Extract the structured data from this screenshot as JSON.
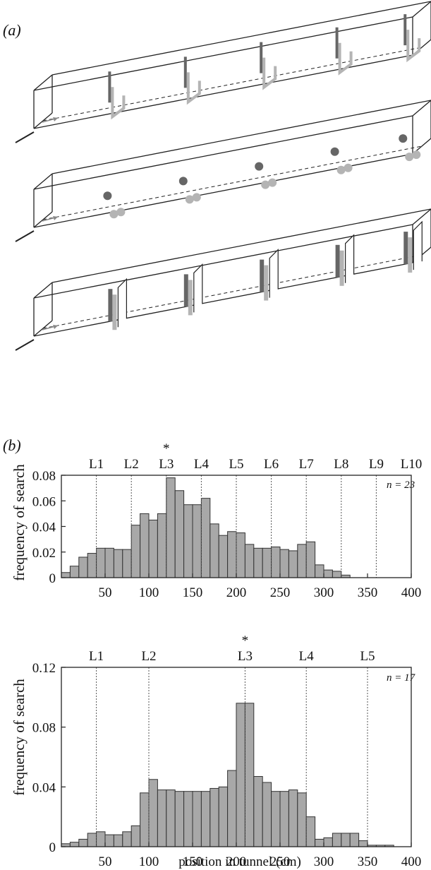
{
  "figure": {
    "panel_a_label": "(a)",
    "panel_b_label": "(b)"
  },
  "colors": {
    "bar_fill": "#a8a8a8",
    "bar_stroke": "#333333",
    "landmark_dark": "#666666",
    "landmark_light": "#b4b4b4",
    "line": "#222222",
    "arrow": "#888888"
  },
  "chart_data": [
    {
      "type": "bar",
      "title": "",
      "xlabel": "",
      "ylabel": "frequency of search",
      "n_label": "n = 23",
      "xlim": [
        0,
        400
      ],
      "ylim": [
        0,
        0.08
      ],
      "xticks": [
        50,
        100,
        150,
        200,
        250,
        300,
        350,
        400
      ],
      "yticks": [
        0,
        0.02,
        0.04,
        0.06,
        0.08
      ],
      "ytick_labels": [
        "0",
        "0.02",
        "0.04",
        "0.06",
        "0.08"
      ],
      "bin_width": 10,
      "bin_starts": [
        0,
        10,
        20,
        30,
        40,
        50,
        60,
        70,
        80,
        90,
        100,
        110,
        120,
        130,
        140,
        150,
        160,
        170,
        180,
        190,
        200,
        210,
        220,
        230,
        240,
        250,
        260,
        270,
        280,
        290,
        300,
        310,
        320,
        330
      ],
      "values": [
        0.004,
        0.009,
        0.016,
        0.019,
        0.023,
        0.023,
        0.022,
        0.022,
        0.041,
        0.05,
        0.045,
        0.05,
        0.078,
        0.068,
        0.057,
        0.057,
        0.062,
        0.042,
        0.033,
        0.036,
        0.035,
        0.026,
        0.023,
        0.023,
        0.024,
        0.022,
        0.021,
        0.026,
        0.028,
        0.01,
        0.006,
        0.005,
        0.002,
        0.0
      ],
      "landmarks": [
        {
          "label": "L1",
          "x": 40
        },
        {
          "label": "L2",
          "x": 80
        },
        {
          "label": "L3",
          "x": 120
        },
        {
          "label": "L4",
          "x": 160
        },
        {
          "label": "L5",
          "x": 200
        },
        {
          "label": "L6",
          "x": 240
        },
        {
          "label": "L7",
          "x": 280
        },
        {
          "label": "L8",
          "x": 320
        },
        {
          "label": "L9",
          "x": 360
        },
        {
          "label": "L10",
          "x": 400
        }
      ],
      "star_label": "*",
      "star_at": "L3",
      "grid": false
    },
    {
      "type": "bar",
      "title": "",
      "xlabel": "position in tunnel (cm)",
      "ylabel": "frequency of search",
      "n_label": "n = 17",
      "xlim": [
        0,
        400
      ],
      "ylim": [
        0,
        0.12
      ],
      "xticks": [
        50,
        100,
        150,
        200,
        250,
        300,
        350,
        400
      ],
      "yticks": [
        0,
        0.04,
        0.08,
        0.12
      ],
      "ytick_labels": [
        "0",
        "0.04",
        "0.08",
        "0.12"
      ],
      "bin_width": 10,
      "bin_starts": [
        0,
        10,
        20,
        30,
        40,
        50,
        60,
        70,
        80,
        90,
        100,
        110,
        120,
        130,
        140,
        150,
        160,
        170,
        180,
        190,
        200,
        210,
        220,
        230,
        240,
        250,
        260,
        270,
        280,
        290,
        300,
        310,
        320,
        330,
        340,
        350,
        360,
        370,
        380,
        390
      ],
      "values": [
        0.002,
        0.003,
        0.005,
        0.009,
        0.01,
        0.008,
        0.008,
        0.01,
        0.014,
        0.036,
        0.045,
        0.038,
        0.038,
        0.037,
        0.037,
        0.037,
        0.037,
        0.039,
        0.04,
        0.051,
        0.096,
        0.096,
        0.047,
        0.043,
        0.037,
        0.037,
        0.038,
        0.036,
        0.02,
        0.005,
        0.006,
        0.009,
        0.009,
        0.009,
        0.004,
        0.001,
        0.001,
        0.001,
        0.0,
        0.0
      ],
      "landmarks": [
        {
          "label": "L1",
          "x": 40
        },
        {
          "label": "L2",
          "x": 100
        },
        {
          "label": "L3",
          "x": 210
        },
        {
          "label": "L4",
          "x": 280
        },
        {
          "label": "L5",
          "x": 350
        }
      ],
      "star_label": "*",
      "star_at": "L3",
      "grid": false
    }
  ]
}
